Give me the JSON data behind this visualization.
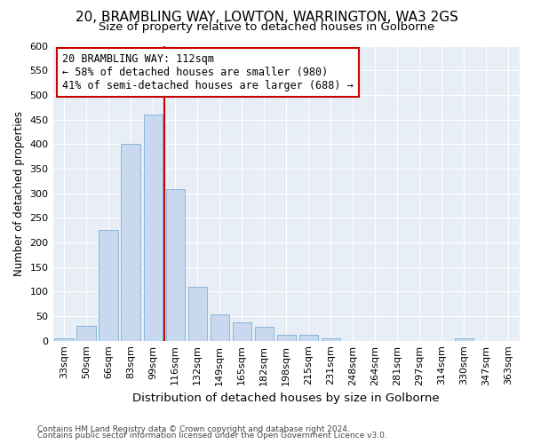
{
  "title": "20, BRAMBLING WAY, LOWTON, WARRINGTON, WA3 2GS",
  "subtitle": "Size of property relative to detached houses in Golborne",
  "xlabel": "Distribution of detached houses by size in Golborne",
  "ylabel": "Number of detached properties",
  "footnote1": "Contains HM Land Registry data © Crown copyright and database right 2024.",
  "footnote2": "Contains public sector information licensed under the Open Government Licence v3.0.",
  "bar_labels": [
    "33sqm",
    "50sqm",
    "66sqm",
    "83sqm",
    "99sqm",
    "116sqm",
    "132sqm",
    "149sqm",
    "165sqm",
    "182sqm",
    "198sqm",
    "215sqm",
    "231sqm",
    "248sqm",
    "264sqm",
    "281sqm",
    "297sqm",
    "314sqm",
    "330sqm",
    "347sqm",
    "363sqm"
  ],
  "bar_values": [
    5,
    30,
    225,
    400,
    460,
    308,
    110,
    53,
    38,
    28,
    12,
    12,
    5,
    0,
    0,
    0,
    0,
    0,
    4,
    0,
    0
  ],
  "bar_color": "#c8d8ee",
  "bar_edge_color": "#7aafd4",
  "vline_index": 5,
  "vline_color": "#cc0000",
  "annotation_text": "20 BRAMBLING WAY: 112sqm\n← 58% of detached houses are smaller (980)\n41% of semi-detached houses are larger (688) →",
  "box_color": "#cc0000",
  "ylim": [
    0,
    600
  ],
  "yticks": [
    0,
    50,
    100,
    150,
    200,
    250,
    300,
    350,
    400,
    450,
    500,
    550,
    600
  ],
  "bg_color": "#ffffff",
  "plot_bg_color": "#e8eef6",
  "grid_color": "#ffffff",
  "title_fontsize": 11,
  "subtitle_fontsize": 9.5,
  "tick_fontsize": 8,
  "ylabel_fontsize": 8.5,
  "xlabel_fontsize": 9.5
}
